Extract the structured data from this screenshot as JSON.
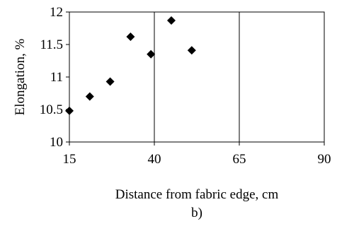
{
  "chart_data": {
    "type": "scatter",
    "xlabel": "Distance from fabric edge, cm",
    "ylabel": "Elongation, %",
    "caption": "b)",
    "xlim": [
      15,
      90
    ],
    "ylim": [
      10,
      12
    ],
    "xticks": [
      15,
      40,
      65,
      90
    ],
    "yticks": [
      10,
      10.5,
      11,
      11.5,
      12
    ],
    "xtick_labels": [
      "15",
      "40",
      "65",
      "90"
    ],
    "ytick_labels": [
      "10",
      "10.5",
      "11",
      "11.5",
      "12"
    ],
    "grid": "vertical",
    "marker": "diamond",
    "series": [
      {
        "x": [
          15,
          21,
          27,
          33,
          39,
          45,
          51
        ],
        "y": [
          10.48,
          10.7,
          10.93,
          11.62,
          11.35,
          11.87,
          11.41
        ]
      }
    ]
  }
}
